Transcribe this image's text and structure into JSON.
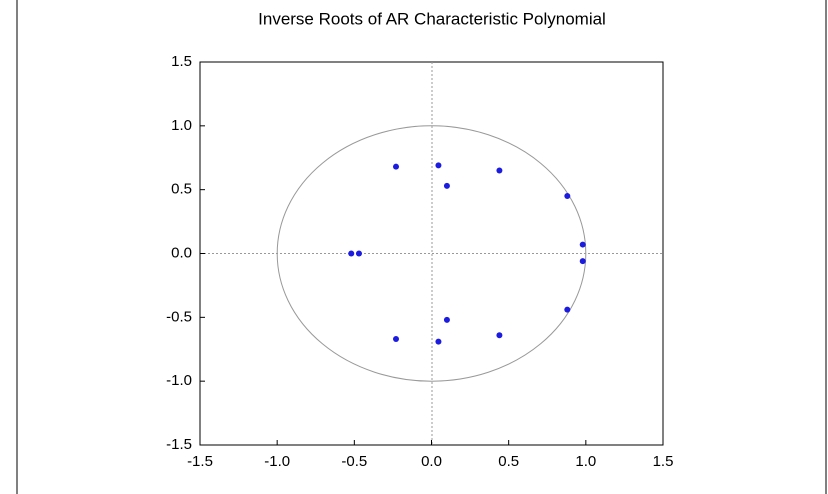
{
  "chart_data": {
    "type": "scatter",
    "title": "Inverse Roots of AR Characteristic Polynomial",
    "x": [
      -0.23,
      0.045,
      0.1,
      0.44,
      0.88,
      0.98,
      0.98,
      0.88,
      0.44,
      0.1,
      0.045,
      -0.23,
      -0.52,
      -0.47
    ],
    "values": [
      0.68,
      0.69,
      0.53,
      0.65,
      0.45,
      0.07,
      -0.06,
      -0.44,
      -0.64,
      -0.52,
      -0.69,
      -0.67,
      0,
      0
    ],
    "color": "#1c1ce0",
    "xlim": [
      -1.5,
      1.5
    ],
    "xticks": [
      -1.5,
      {
        "value": -1,
        "label": "-1.0"
      },
      -0.5,
      {
        "value": 0,
        "label": "0.0"
      },
      0.5,
      {
        "value": 1,
        "label": "1.0"
      },
      1.5
    ],
    "ylim": [
      -1.5,
      1.5
    ],
    "yticks": [
      -1.5,
      {
        "value": -1,
        "label": "-1.0"
      },
      -0.5,
      {
        "value": 0,
        "label": "0.0"
      },
      0.5,
      {
        "value": 1,
        "label": "1.0"
      },
      1.5
    ]
  }
}
